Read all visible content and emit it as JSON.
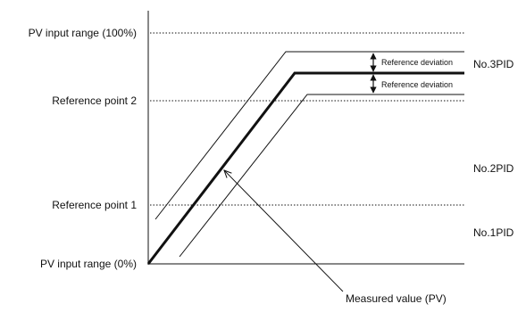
{
  "diagram": {
    "labels": {
      "pv_input_range_max": "PV input range (100%)",
      "reference_point_2": "Reference point 2",
      "reference_point_1": "Reference point 1",
      "pv_input_range_min": "PV input range (0%)",
      "no3pid": "No.3PID",
      "no2pid": "No.2PID",
      "no1pid": "No.1PID",
      "reference_deviation_upper": "Reference deviation",
      "reference_deviation_lower": "Reference deviation",
      "measured_value": "Measured value (PV)"
    }
  }
}
